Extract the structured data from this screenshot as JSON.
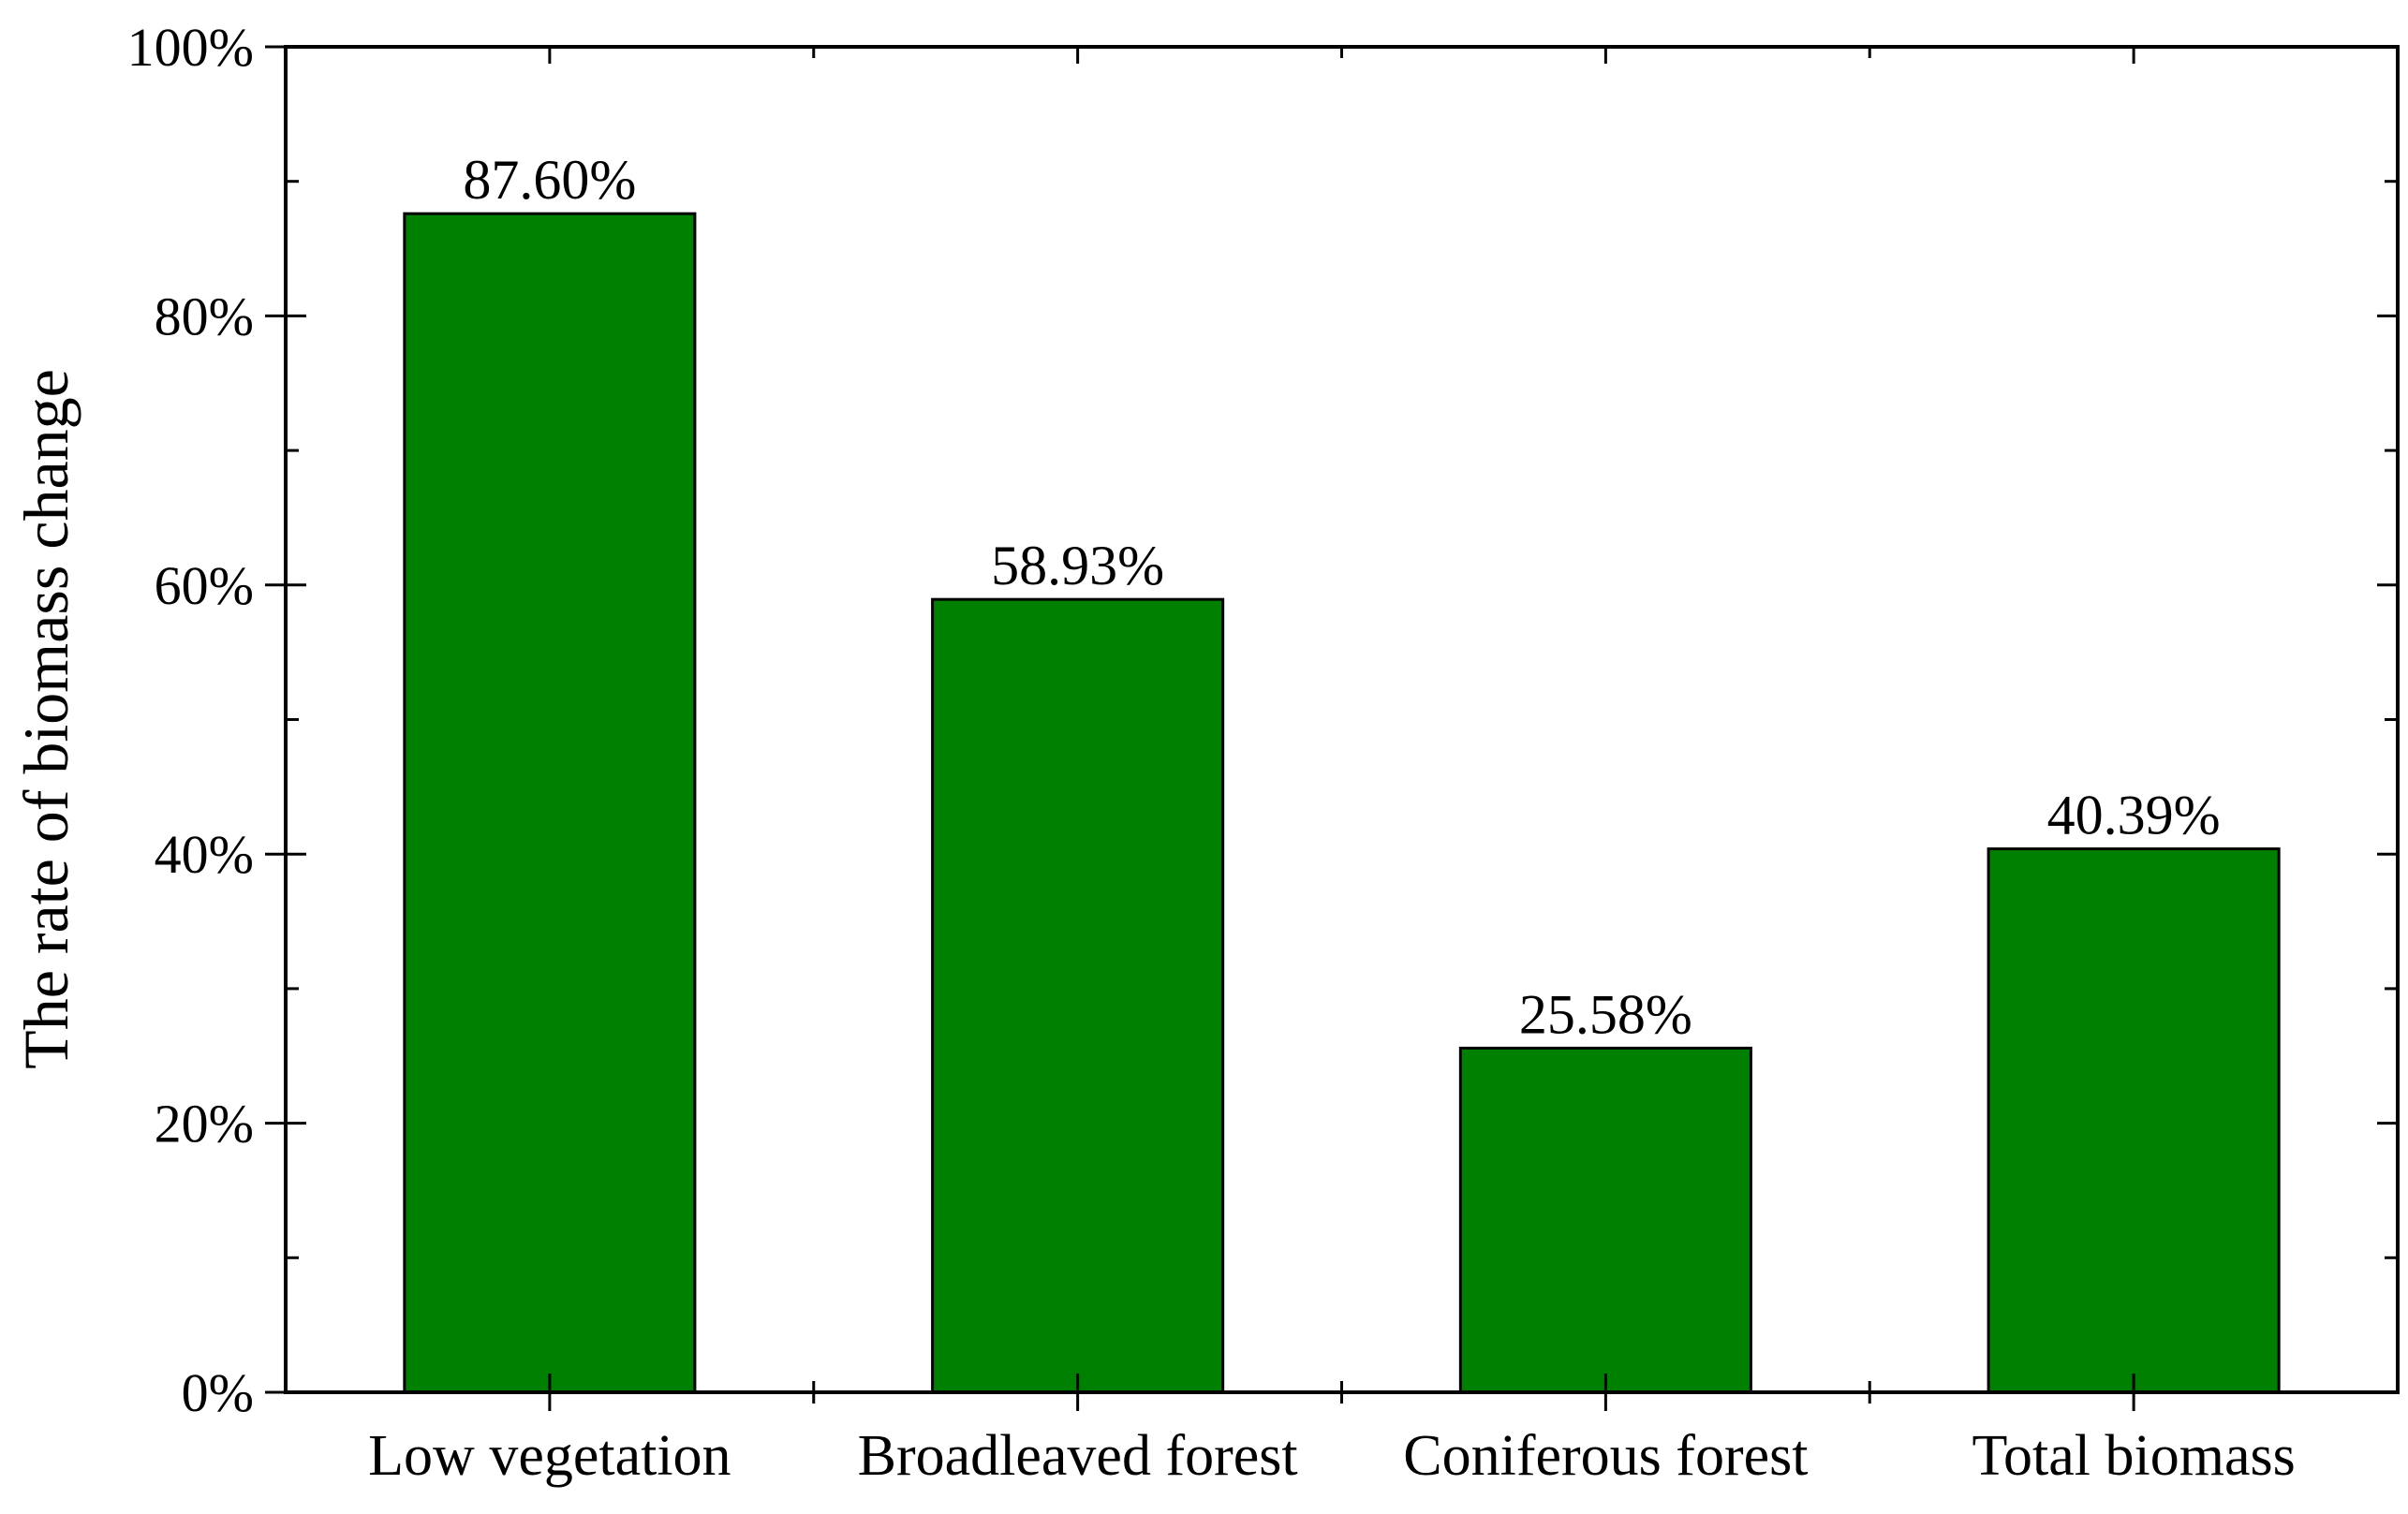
{
  "chart_data": {
    "type": "bar",
    "title": "",
    "xlabel": "",
    "ylabel": "The rate of biomass change",
    "categories": [
      "Low vegetation",
      "Broadleaved forest",
      "Coniferous forest",
      "Total biomass"
    ],
    "values": [
      87.6,
      58.93,
      25.58,
      40.39
    ],
    "data_labels": [
      "87.60%",
      "58.93%",
      "25.58%",
      "40.39%"
    ],
    "ylim": [
      0,
      100
    ],
    "y_major_ticks": [
      0,
      20,
      40,
      60,
      80,
      100
    ],
    "y_tick_labels": [
      "0%",
      "20%",
      "40%",
      "60%",
      "80%",
      "100%"
    ],
    "grid": false,
    "bar_color": "#008000",
    "bar_edge_color": "#000000"
  }
}
